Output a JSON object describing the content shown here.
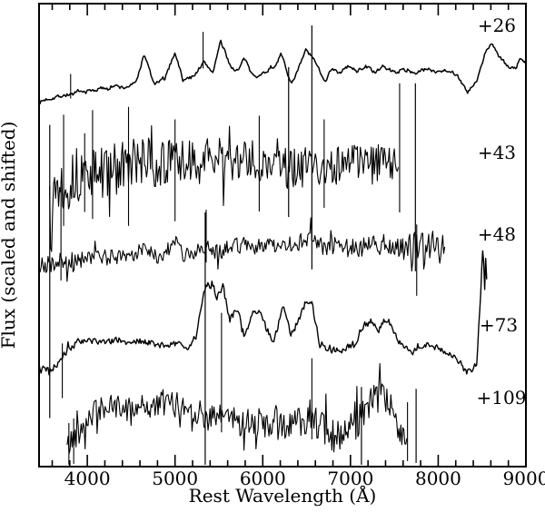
{
  "chart_data": {
    "type": "line",
    "title": "",
    "xlabel": "Rest Wavelength (Å)",
    "ylabel": "Flux (scaled and shifted)",
    "x_range": [
      3450,
      9000
    ],
    "y_units": "arbitrary flux, normalized 0-1 of plot height (scaled and shifted)",
    "x_major_ticks": [
      4000,
      5000,
      6000,
      7000,
      8000,
      9000
    ],
    "x_major_tick_labels": [
      "4000",
      "5000",
      "6000",
      "7000",
      "8000",
      "9000"
    ],
    "x_minor_tick_interval": 200,
    "grid": false,
    "legend_position": "right-inline-labels",
    "frame_color": "#000000",
    "trace_color": "#000000",
    "background_color": "#ffffff",
    "sky_lines": [
      [
        3572,
        0.738,
        0.105
      ],
      [
        5344,
        0.549,
        0.004
      ],
      [
        6295,
        0.863,
        0.539
      ],
      [
        6560,
        0.953,
        0.426
      ],
      [
        7125,
        0.172,
        0.004
      ],
      [
        7740,
        0.828,
        0.422
      ],
      [
        7748,
        0.168,
        0.008
      ]
    ],
    "series": [
      {
        "label": "+26",
        "label_pos": {
          "wavelength": 8668,
          "flux": 0.953
        },
        "points": [
          [
            3460,
            0.787
          ],
          [
            3550,
            0.795
          ],
          [
            3700,
            0.801
          ],
          [
            3900,
            0.807
          ],
          [
            4100,
            0.814
          ],
          [
            4300,
            0.822
          ],
          [
            4420,
            0.818
          ],
          [
            4550,
            0.828
          ],
          [
            4650,
            0.891
          ],
          [
            4760,
            0.826
          ],
          [
            4880,
            0.836
          ],
          [
            5000,
            0.896
          ],
          [
            5090,
            0.834
          ],
          [
            5200,
            0.842
          ],
          [
            5330,
            0.873
          ],
          [
            5430,
            0.852
          ],
          [
            5520,
            0.918
          ],
          [
            5640,
            0.862
          ],
          [
            5720,
            0.855
          ],
          [
            5790,
            0.882
          ],
          [
            5860,
            0.852
          ],
          [
            5960,
            0.843
          ],
          [
            6040,
            0.855
          ],
          [
            6120,
            0.862
          ],
          [
            6210,
            0.891
          ],
          [
            6320,
            0.828
          ],
          [
            6400,
            0.855
          ],
          [
            6490,
            0.9
          ],
          [
            6560,
            0.885
          ],
          [
            6650,
            0.855
          ],
          [
            6710,
            0.833
          ],
          [
            6790,
            0.862
          ],
          [
            6880,
            0.849
          ],
          [
            6970,
            0.865
          ],
          [
            7070,
            0.854
          ],
          [
            7170,
            0.865
          ],
          [
            7280,
            0.852
          ],
          [
            7390,
            0.863
          ],
          [
            7500,
            0.852
          ],
          [
            7620,
            0.857
          ],
          [
            7740,
            0.85
          ],
          [
            7860,
            0.859
          ],
          [
            7980,
            0.854
          ],
          [
            8100,
            0.857
          ],
          [
            8220,
            0.846
          ],
          [
            8330,
            0.807
          ],
          [
            8440,
            0.832
          ],
          [
            8540,
            0.895
          ],
          [
            8610,
            0.916
          ],
          [
            8700,
            0.883
          ],
          [
            8790,
            0.865
          ],
          [
            8880,
            0.859
          ],
          [
            8940,
            0.883
          ],
          [
            9000,
            0.871
          ]
        ],
        "noise_profile": [
          [
            3460,
            0.007
          ],
          [
            4500,
            0.006
          ],
          [
            9000,
            0.006
          ]
        ],
        "spikes": [
          [
            3810,
            0.848,
            0.795
          ],
          [
            5320,
            0.939,
            0.86
          ]
        ],
        "smoothing": 0.4,
        "spike_prob": 0.02,
        "stroke_width": 1.5
      },
      {
        "label": "+43",
        "label_pos": {
          "wavelength": 8668,
          "flux": 0.678
        },
        "points": [
          [
            3570,
            0.598
          ],
          [
            3700,
            0.613
          ],
          [
            3800,
            0.617
          ],
          [
            3900,
            0.629
          ],
          [
            4000,
            0.635
          ],
          [
            4120,
            0.631
          ],
          [
            4250,
            0.641
          ],
          [
            4400,
            0.646
          ],
          [
            4550,
            0.652
          ],
          [
            4700,
            0.658
          ],
          [
            4850,
            0.652
          ],
          [
            5000,
            0.66
          ],
          [
            5150,
            0.654
          ],
          [
            5300,
            0.66
          ],
          [
            5450,
            0.664
          ],
          [
            5600,
            0.668
          ],
          [
            5750,
            0.658
          ],
          [
            5900,
            0.662
          ],
          [
            6050,
            0.654
          ],
          [
            6200,
            0.648
          ],
          [
            6350,
            0.643
          ],
          [
            6500,
            0.648
          ],
          [
            6650,
            0.639
          ],
          [
            6800,
            0.654
          ],
          [
            6950,
            0.658
          ],
          [
            7100,
            0.662
          ],
          [
            7250,
            0.648
          ],
          [
            7400,
            0.658
          ],
          [
            7550,
            0.645
          ]
        ],
        "noise_profile": [
          [
            3570,
            0.064
          ],
          [
            4500,
            0.055
          ],
          [
            5500,
            0.047
          ],
          [
            6500,
            0.045
          ],
          [
            7550,
            0.043
          ]
        ],
        "spikes": [
          [
            3730,
            0.76,
            0.52
          ],
          [
            3970,
            0.72,
            0.55
          ],
          [
            4060,
            0.77,
            0.535
          ],
          [
            4470,
            0.777,
            0.52
          ],
          [
            5000,
            0.75,
            0.53
          ],
          [
            5960,
            0.758,
            0.551
          ],
          [
            6700,
            0.75,
            0.559
          ],
          [
            7560,
            0.828,
            0.549
          ]
        ],
        "smoothing": 0.0,
        "spike_prob": 0.06,
        "stroke_width": 1.1
      },
      {
        "label": "+48",
        "label_pos": {
          "wavelength": 8668,
          "flux": 0.502
        },
        "points": [
          [
            3450,
            0.43
          ],
          [
            3560,
            0.441
          ],
          [
            3650,
            0.436
          ],
          [
            3730,
            0.449
          ],
          [
            3820,
            0.443
          ],
          [
            3920,
            0.449
          ],
          [
            4020,
            0.445
          ],
          [
            4120,
            0.453
          ],
          [
            4230,
            0.449
          ],
          [
            4340,
            0.455
          ],
          [
            4450,
            0.451
          ],
          [
            4560,
            0.461
          ],
          [
            4650,
            0.475
          ],
          [
            4760,
            0.455
          ],
          [
            4900,
            0.465
          ],
          [
            5000,
            0.482
          ],
          [
            5100,
            0.461
          ],
          [
            5220,
            0.465
          ],
          [
            5350,
            0.477
          ],
          [
            5480,
            0.463
          ],
          [
            5600,
            0.471
          ],
          [
            5750,
            0.48
          ],
          [
            5900,
            0.477
          ],
          [
            6050,
            0.475
          ],
          [
            6200,
            0.48
          ],
          [
            6350,
            0.479
          ],
          [
            6450,
            0.486
          ],
          [
            6560,
            0.496
          ],
          [
            6670,
            0.473
          ],
          [
            6800,
            0.479
          ],
          [
            6950,
            0.471
          ],
          [
            7100,
            0.479
          ],
          [
            7250,
            0.471
          ],
          [
            7400,
            0.479
          ],
          [
            7550,
            0.467
          ],
          [
            7700,
            0.475
          ],
          [
            7850,
            0.469
          ],
          [
            7980,
            0.477
          ],
          [
            8080,
            0.469
          ]
        ],
        "noise_profile": [
          [
            3450,
            0.027
          ],
          [
            4300,
            0.02
          ],
          [
            6500,
            0.02
          ],
          [
            7200,
            0.028
          ],
          [
            8080,
            0.038
          ]
        ],
        "spikes": [
          [
            3700,
            0.607,
            0.402
          ],
          [
            5355,
            0.555,
            0.441
          ],
          [
            7755,
            0.523,
            0.369
          ]
        ],
        "smoothing": 0.1,
        "spike_prob": 0.05,
        "stroke_width": 1.1
      },
      {
        "label": "+73",
        "label_pos": {
          "wavelength": 8689,
          "flux": 0.306
        },
        "points": [
          [
            3450,
            0.217
          ],
          [
            3520,
            0.203
          ],
          [
            3600,
            0.211
          ],
          [
            3700,
            0.23
          ],
          [
            3800,
            0.256
          ],
          [
            3900,
            0.27
          ],
          [
            4000,
            0.273
          ],
          [
            4150,
            0.27
          ],
          [
            4300,
            0.273
          ],
          [
            4450,
            0.268
          ],
          [
            4600,
            0.271
          ],
          [
            4750,
            0.266
          ],
          [
            4900,
            0.262
          ],
          [
            5050,
            0.266
          ],
          [
            5150,
            0.256
          ],
          [
            5250,
            0.287
          ],
          [
            5330,
            0.383
          ],
          [
            5420,
            0.398
          ],
          [
            5480,
            0.363
          ],
          [
            5550,
            0.387
          ],
          [
            5620,
            0.314
          ],
          [
            5700,
            0.344
          ],
          [
            5790,
            0.285
          ],
          [
            5870,
            0.328
          ],
          [
            5950,
            0.34
          ],
          [
            6030,
            0.305
          ],
          [
            6120,
            0.266
          ],
          [
            6230,
            0.348
          ],
          [
            6320,
            0.279
          ],
          [
            6420,
            0.324
          ],
          [
            6500,
            0.363
          ],
          [
            6560,
            0.354
          ],
          [
            6650,
            0.266
          ],
          [
            6750,
            0.256
          ],
          [
            6850,
            0.25
          ],
          [
            6950,
            0.256
          ],
          [
            7050,
            0.27
          ],
          [
            7150,
            0.305
          ],
          [
            7250,
            0.314
          ],
          [
            7320,
            0.295
          ],
          [
            7420,
            0.32
          ],
          [
            7500,
            0.289
          ],
          [
            7600,
            0.256
          ],
          [
            7700,
            0.246
          ],
          [
            7800,
            0.262
          ],
          [
            7900,
            0.266
          ],
          [
            8000,
            0.254
          ],
          [
            8100,
            0.246
          ],
          [
            8200,
            0.236
          ],
          [
            8300,
            0.217
          ],
          [
            8380,
            0.201
          ],
          [
            8440,
            0.227
          ],
          [
            8480,
            0.363
          ],
          [
            8510,
            0.484
          ],
          [
            8530,
            0.383
          ],
          [
            8545,
            0.48
          ],
          [
            8560,
            0.344
          ]
        ],
        "noise_profile": [
          [
            3450,
            0.016
          ],
          [
            3900,
            0.009
          ],
          [
            5200,
            0.009
          ],
          [
            5300,
            0.013
          ],
          [
            6600,
            0.011
          ],
          [
            8300,
            0.008
          ],
          [
            8560,
            0.012
          ]
        ],
        "spikes": [
          [
            3715,
            0.266,
            0.148
          ]
        ],
        "smoothing": 0.3,
        "spike_prob": 0.03,
        "stroke_width": 1.4
      },
      {
        "label": "+109",
        "label_pos": {
          "wavelength": 8720,
          "flux": 0.149
        },
        "points": [
          [
            3770,
            0.041
          ],
          [
            3820,
            0.055
          ],
          [
            3880,
            0.074
          ],
          [
            3950,
            0.094
          ],
          [
            4050,
            0.113
          ],
          [
            4150,
            0.125
          ],
          [
            4300,
            0.129
          ],
          [
            4450,
            0.125
          ],
          [
            4600,
            0.133
          ],
          [
            4750,
            0.129
          ],
          [
            4900,
            0.137
          ],
          [
            5050,
            0.133
          ],
          [
            5200,
            0.125
          ],
          [
            5300,
            0.113
          ],
          [
            5400,
            0.105
          ],
          [
            5500,
            0.1
          ],
          [
            5560,
            0.119
          ],
          [
            5650,
            0.105
          ],
          [
            5750,
            0.094
          ],
          [
            5850,
            0.1
          ],
          [
            5950,
            0.094
          ],
          [
            6050,
            0.086
          ],
          [
            6150,
            0.094
          ],
          [
            6250,
            0.086
          ],
          [
            6350,
            0.094
          ],
          [
            6450,
            0.1
          ],
          [
            6560,
            0.119
          ],
          [
            6650,
            0.086
          ],
          [
            6750,
            0.066
          ],
          [
            6850,
            0.055
          ],
          [
            6950,
            0.061
          ],
          [
            7050,
            0.09
          ],
          [
            7150,
            0.125
          ],
          [
            7250,
            0.139
          ],
          [
            7350,
            0.145
          ],
          [
            7450,
            0.133
          ],
          [
            7550,
            0.09
          ],
          [
            7650,
            0.051
          ]
        ],
        "noise_profile": [
          [
            3770,
            0.03
          ],
          [
            4300,
            0.026
          ],
          [
            5500,
            0.03
          ],
          [
            6200,
            0.034
          ],
          [
            7100,
            0.04
          ],
          [
            7650,
            0.03
          ]
        ],
        "spikes": [
          [
            3790,
            0.094,
            0.004
          ],
          [
            3845,
            0.104,
            0.006
          ],
          [
            5530,
            0.332,
            0.074
          ],
          [
            6560,
            0.234,
            0.059
          ],
          [
            7650,
            0.139,
            0.012
          ]
        ],
        "smoothing": 0.0,
        "spike_prob": 0.07,
        "stroke_width": 1.1
      }
    ]
  }
}
